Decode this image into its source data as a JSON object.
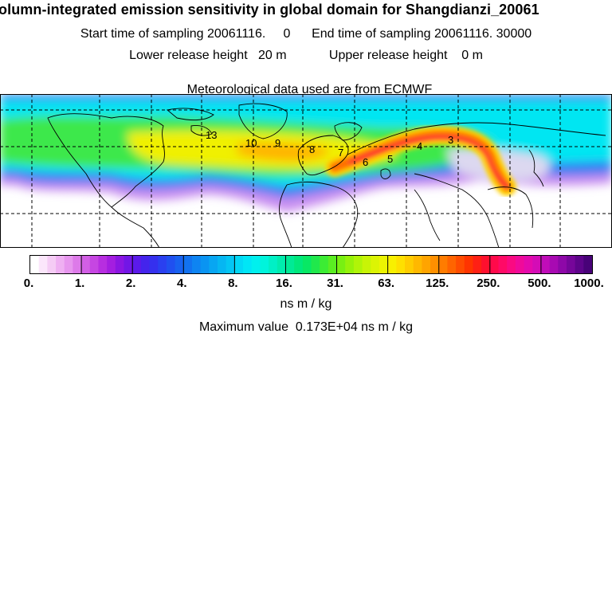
{
  "header": {
    "title": "olumn-integrated emission sensitivity in global domain for Shangdianzi_20061",
    "start_label": "Start time of sampling",
    "start_value": "20061116.     0",
    "end_label": "End time of sampling",
    "end_value": "20061116. 30000",
    "lower_label": "Lower release height",
    "lower_value": "20 m",
    "upper_label": "Upper release height",
    "upper_value": "0 m",
    "met_text": "Meteorological data used are from ECMWF"
  },
  "map": {
    "contour_labels": [
      "13",
      "10",
      "9",
      "8",
      "7",
      "6",
      "5",
      "4",
      "3"
    ],
    "colors": {
      "background": "#ffffff",
      "coast": "#000000",
      "track": "#ff2a00"
    }
  },
  "colorbar": {
    "tick_labels": [
      "0.",
      "1.",
      "2.",
      "4.",
      "8.",
      "16.",
      "31.",
      "63.",
      "125.",
      "250.",
      "500.",
      "1000."
    ],
    "colors": [
      "#ffffff",
      "#fbe6fb",
      "#f5ccf5",
      "#efb0f2",
      "#e796ee",
      "#dd7ae9",
      "#d25fe5",
      "#c646e2",
      "#b72ee0",
      "#a41ee0",
      "#8b16e2",
      "#7216e6",
      "#5b1aea",
      "#4424ec",
      "#3530ee",
      "#2a40f0",
      "#2050f0",
      "#1862f0",
      "#1272f0",
      "#0e84f2",
      "#0a94f2",
      "#08a6f2",
      "#06b6f2",
      "#04c6f4",
      "#02d8f6",
      "#00e6f6",
      "#00f0ee",
      "#00f4dc",
      "#00f0c6",
      "#00ecae",
      "#00ea96",
      "#00e87c",
      "#08e864",
      "#20e84c",
      "#3cec34",
      "#5aee22",
      "#78f012",
      "#96f20a",
      "#b0f408",
      "#c8f406",
      "#dcf404",
      "#ecf402",
      "#f8f000",
      "#fee000",
      "#ffcc00",
      "#ffb800",
      "#ffa400",
      "#ff9000",
      "#ff7c00",
      "#ff6400",
      "#ff4c00",
      "#ff3400",
      "#ff2014",
      "#ff102e",
      "#ff0a4a",
      "#ff0a66",
      "#fa0a82",
      "#f00a9a",
      "#e40aac",
      "#d40cb6",
      "#c00cb8",
      "#a80ab2",
      "#8e08a8",
      "#76069a",
      "#5e048a",
      "#480278"
    ],
    "units": "ns m / kg"
  },
  "footer": {
    "max_label": "Maximum value",
    "max_value": "0.173E+04 ns m / kg"
  }
}
